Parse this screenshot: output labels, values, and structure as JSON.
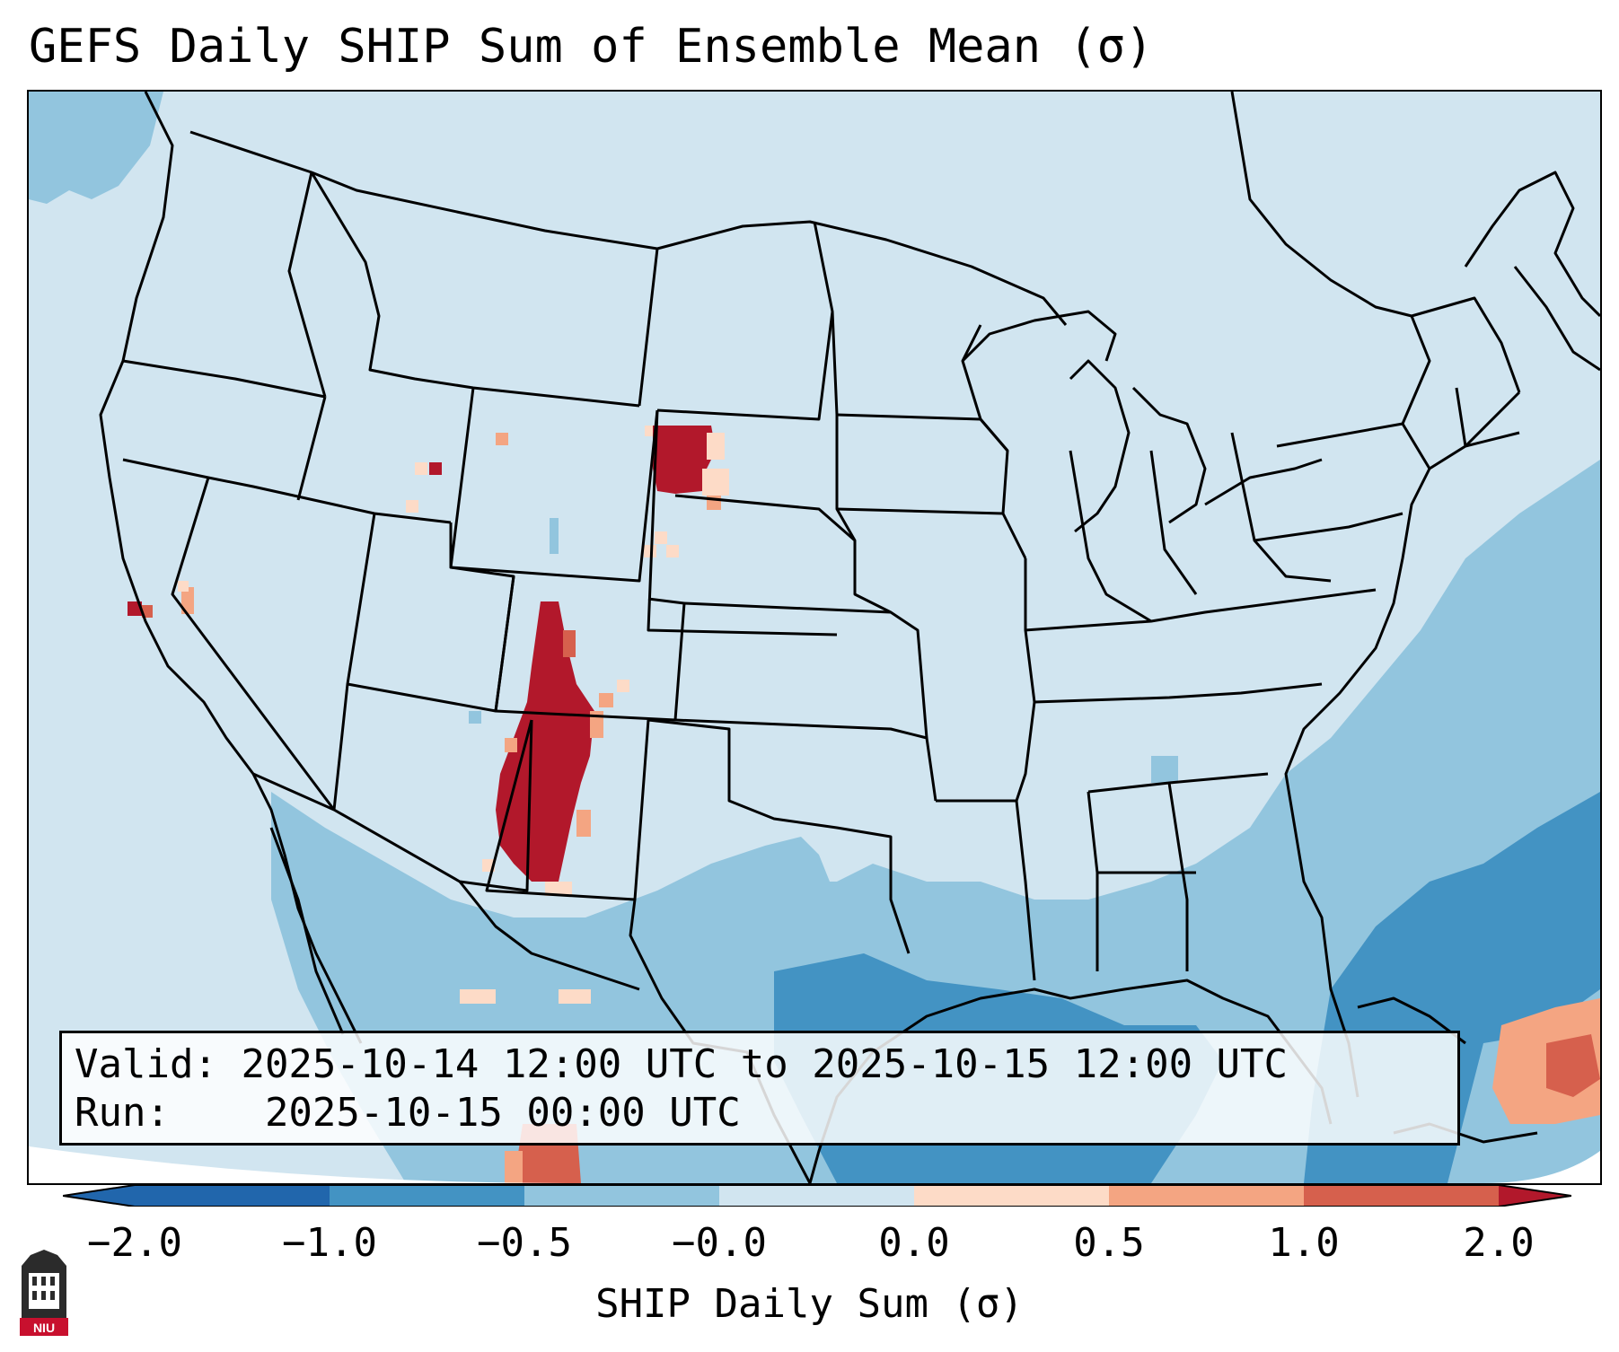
{
  "title": "GEFS Daily SHIP Sum of Ensemble Mean (σ)",
  "valid": {
    "valid_label": "Valid:",
    "valid_value": "2025-10-14 12:00 UTC to 2025-10-15 12:00 UTC",
    "run_label": "Run:",
    "run_value": "2025-10-15 00:00 UTC"
  },
  "colorbar": {
    "label": "SHIP Daily Sum (σ)",
    "ticks": [
      "−2.0",
      "−1.0",
      "−0.5",
      "−0.0",
      "0.0",
      "0.5",
      "1.0",
      "2.0"
    ],
    "colors": [
      "#2166ac",
      "#4393c3",
      "#92c5de",
      "#d1e5f0",
      "#f7f7f7",
      "#fddbc7",
      "#f4a582",
      "#d6604d",
      "#b2182b"
    ]
  },
  "logo": {
    "text": "NIU"
  }
}
